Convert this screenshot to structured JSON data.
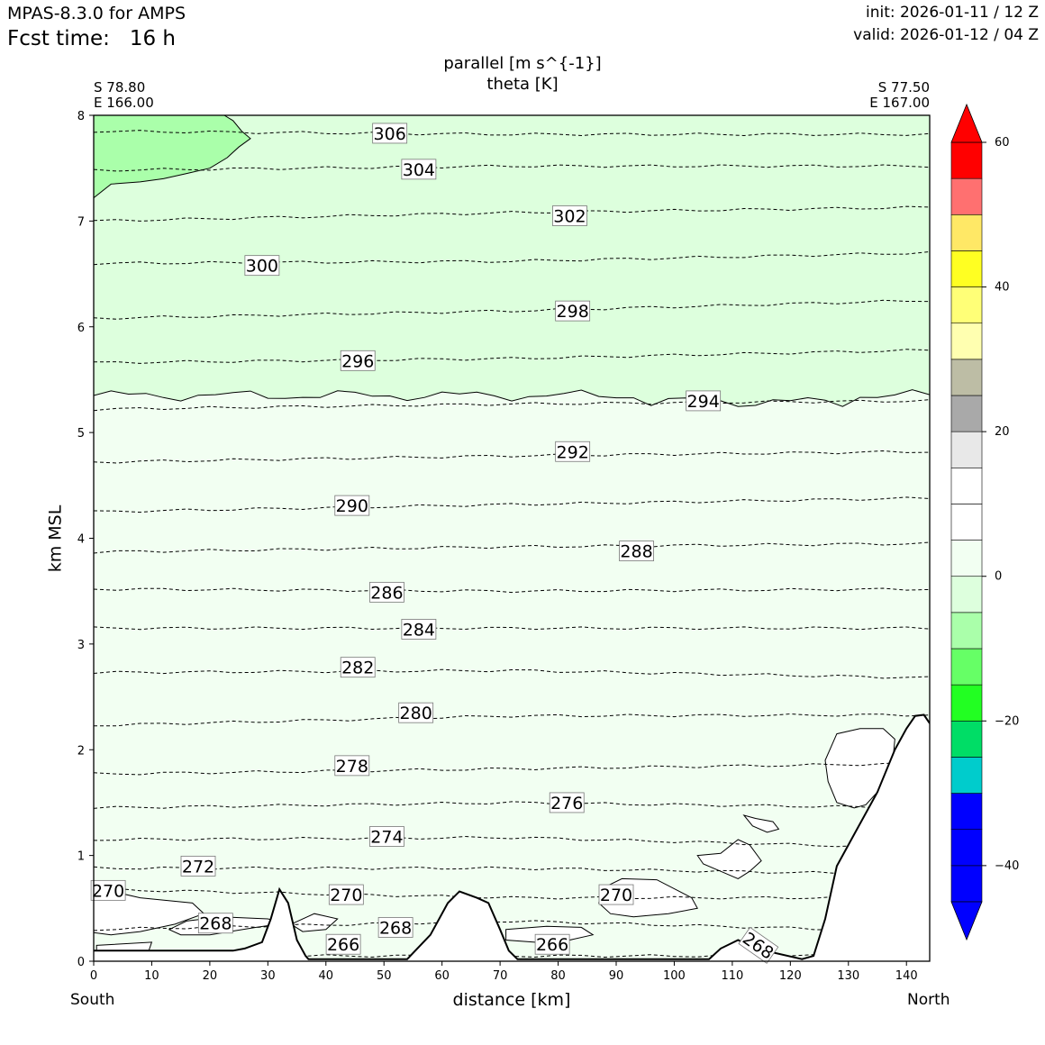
{
  "header": {
    "model": "MPAS-8.3.0 for AMPS",
    "fcst_label": "Fcst time:",
    "fcst_value": "16 h",
    "init": "init: 2026-01-11 / 12 Z",
    "valid": "valid: 2026-01-12 / 04 Z"
  },
  "chart_data": {
    "type": "contour",
    "title_lines": [
      "parallel [m s^{-1}]",
      "theta [K]"
    ],
    "xlabel": "distance [km]",
    "ylabel": "km MSL",
    "xlim": [
      0,
      144
    ],
    "ylim": [
      0,
      8
    ],
    "x_ticks": [
      0,
      10,
      20,
      30,
      40,
      50,
      60,
      70,
      80,
      90,
      100,
      110,
      120,
      130,
      140
    ],
    "y_ticks": [
      0,
      1,
      2,
      3,
      4,
      5,
      6,
      7,
      8
    ],
    "start_point": {
      "lat": "S 78.80",
      "lon": "E 166.00"
    },
    "end_point": {
      "lat": "S 77.50",
      "lon": "E 167.00"
    },
    "left_end_label": "South",
    "right_end_label": "North",
    "filled_field": {
      "name": "parallel",
      "units": "m s^{-1}",
      "levels": [
        -60,
        -55,
        -50,
        -45,
        -40,
        -35,
        -30,
        -25,
        -20,
        -15,
        -10,
        -5,
        0,
        5,
        10,
        15,
        20,
        25,
        30,
        35,
        40,
        45,
        50,
        55,
        60
      ],
      "colors": [
        "#0000ff",
        "#0000ff",
        "#0000ff",
        "#00cccc",
        "#00dd66",
        "#22ff22",
        "#66ff66",
        "#aaffaa",
        "#ddffdd",
        "#f2fff2",
        "#ffffff",
        "#ffffff",
        "#e8e8e8",
        "#a9a9a9",
        "#bdbda5",
        "#ffffb0",
        "#ffff77",
        "#ffff22",
        "#ffe866",
        "#ff7070",
        "#ff0000"
      ],
      "colorbar_ticks": [
        -40,
        -20,
        0,
        20,
        40,
        60
      ],
      "extend": "both",
      "regions": [
        {
          "range": "-15 to -10",
          "description": "upper-left corner, 0-27 km, 7.2-8 km"
        },
        {
          "range": "-10 to -5",
          "y_min": 5.35,
          "y_max": 8
        },
        {
          "range": "-5 to 0",
          "y_min": 0.1,
          "y_max": 5.35
        },
        {
          "range": "0 to 5",
          "description": "near surface patches and above ridge at 125-143 km"
        }
      ]
    },
    "theta_contours": {
      "name": "theta",
      "units": "K",
      "style": "dashed",
      "lines": [
        {
          "level": 266,
          "y": [
            0.05,
            0.05,
            0.05
          ]
        },
        {
          "level": 268,
          "y": [
            0.3,
            0.38,
            0.28
          ]
        },
        {
          "level": 270,
          "y": [
            0.68,
            0.6,
            0.6
          ]
        },
        {
          "level": 272,
          "y": [
            0.88,
            0.88,
            0.82
          ]
        },
        {
          "level": 274,
          "y": [
            1.15,
            1.17,
            1.07
          ]
        },
        {
          "level": 276,
          "y": [
            1.45,
            1.5,
            1.45
          ]
        },
        {
          "level": 278,
          "y": [
            1.77,
            1.82,
            1.87
          ]
        },
        {
          "level": 280,
          "y": [
            2.23,
            2.32,
            2.33
          ]
        },
        {
          "level": 282,
          "y": [
            2.73,
            2.75,
            2.68
          ]
        },
        {
          "level": 284,
          "y": [
            3.15,
            3.15,
            3.15
          ]
        },
        {
          "level": 286,
          "y": [
            3.52,
            3.5,
            3.52
          ]
        },
        {
          "level": 288,
          "y": [
            3.87,
            3.92,
            3.95
          ]
        },
        {
          "level": 290,
          "y": [
            4.25,
            4.32,
            4.38
          ]
        },
        {
          "level": 292,
          "y": [
            4.72,
            4.78,
            4.82
          ]
        },
        {
          "level": 294,
          "y": [
            5.22,
            5.27,
            5.3
          ]
        },
        {
          "level": 296,
          "y": [
            5.66,
            5.7,
            5.78
          ]
        },
        {
          "level": 298,
          "y": [
            6.08,
            6.15,
            6.25
          ]
        },
        {
          "level": 300,
          "y": [
            6.6,
            6.62,
            6.7
          ]
        },
        {
          "level": 302,
          "y": [
            7.0,
            7.08,
            7.13
          ]
        },
        {
          "level": 304,
          "y": [
            7.48,
            7.52,
            7.52
          ]
        },
        {
          "level": 306,
          "y": [
            7.85,
            7.82,
            7.82
          ]
        }
      ],
      "labels": [
        {
          "text": "306",
          "x": 51,
          "y": 7.83
        },
        {
          "text": "304",
          "x": 56,
          "y": 7.49
        },
        {
          "text": "302",
          "x": 82,
          "y": 7.05
        },
        {
          "text": "300",
          "x": 29,
          "y": 6.58
        },
        {
          "text": "298",
          "x": 82.5,
          "y": 6.15
        },
        {
          "text": "296",
          "x": 45.5,
          "y": 5.68
        },
        {
          "text": "294",
          "x": 105,
          "y": 5.3
        },
        {
          "text": "292",
          "x": 82.5,
          "y": 4.82
        },
        {
          "text": "290",
          "x": 44.5,
          "y": 4.31
        },
        {
          "text": "288",
          "x": 93.5,
          "y": 3.88
        },
        {
          "text": "286",
          "x": 50.5,
          "y": 3.49
        },
        {
          "text": "284",
          "x": 56,
          "y": 3.14
        },
        {
          "text": "282",
          "x": 45.5,
          "y": 2.78
        },
        {
          "text": "280",
          "x": 55.5,
          "y": 2.35
        },
        {
          "text": "278",
          "x": 44.5,
          "y": 1.85
        },
        {
          "text": "276",
          "x": 81.5,
          "y": 1.5
        },
        {
          "text": "274",
          "x": 50.5,
          "y": 1.18
        },
        {
          "text": "272",
          "x": 18,
          "y": 0.9
        },
        {
          "text": "270",
          "x": 2.5,
          "y": 0.67
        },
        {
          "text": "270",
          "x": 43.5,
          "y": 0.63
        },
        {
          "text": "270",
          "x": 90,
          "y": 0.63
        },
        {
          "text": "268",
          "x": 21,
          "y": 0.36
        },
        {
          "text": "268",
          "x": 52,
          "y": 0.32
        },
        {
          "text": "268",
          "x": 114.5,
          "y": 0.15
        },
        {
          "text": "266",
          "x": 43,
          "y": 0.16
        },
        {
          "text": "266",
          "x": 79,
          "y": 0.16
        }
      ]
    },
    "terrain": {
      "x": [
        0,
        24,
        26,
        29,
        30.5,
        32,
        33.5,
        35,
        36.5,
        37,
        54,
        58,
        61,
        63,
        66,
        68,
        70,
        71.5,
        73,
        106,
        108,
        111,
        114,
        122,
        124,
        126,
        128,
        131,
        135,
        138,
        140,
        141.5,
        143,
        144
      ],
      "y": [
        0.1,
        0.1,
        0.12,
        0.18,
        0.4,
        0.68,
        0.55,
        0.2,
        0.05,
        0.02,
        0.02,
        0.25,
        0.55,
        0.66,
        0.6,
        0.55,
        0.3,
        0.1,
        0.02,
        0.02,
        0.12,
        0.2,
        0.12,
        0.02,
        0.05,
        0.4,
        0.9,
        1.2,
        1.6,
        2.0,
        2.2,
        2.32,
        2.33,
        2.25
      ]
    }
  }
}
